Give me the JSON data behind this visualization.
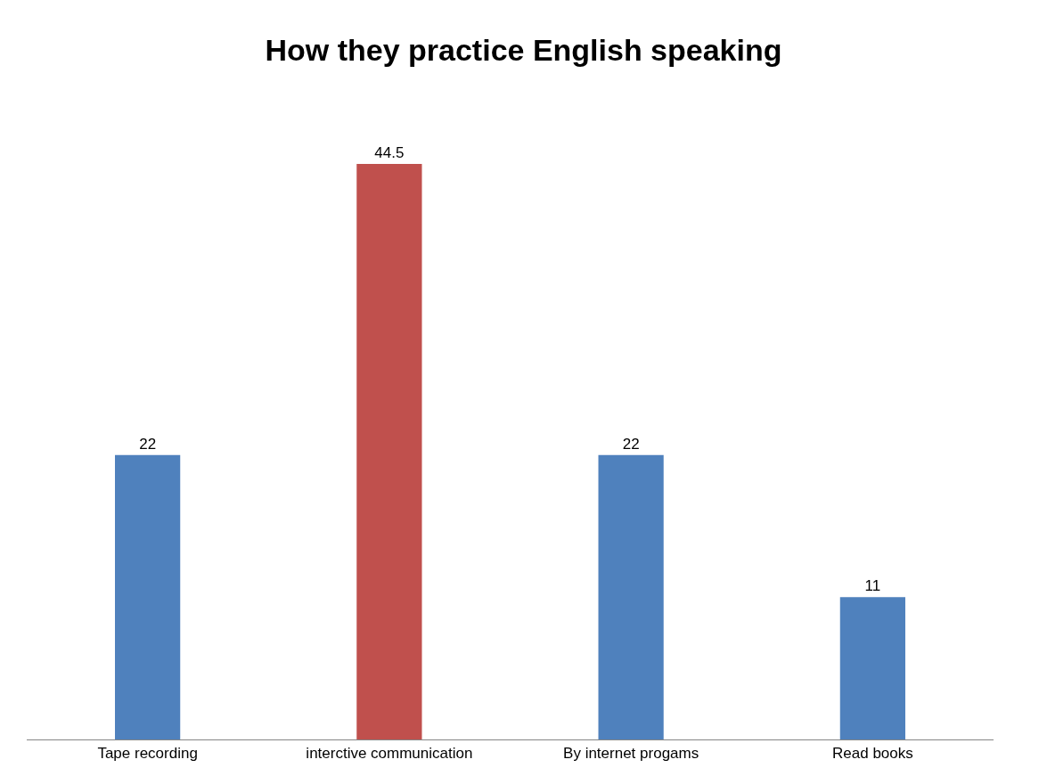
{
  "chart_data": {
    "type": "bar",
    "title": "How they practice English speaking",
    "categories": [
      "Tape recording",
      "interctive communication",
      "By internet progams",
      "Read books"
    ],
    "values": [
      22,
      44.5,
      22,
      11
    ],
    "colors": [
      "#4f81bd",
      "#c0504d",
      "#4f81bd",
      "#4f81bd"
    ],
    "data_labels": true
  }
}
